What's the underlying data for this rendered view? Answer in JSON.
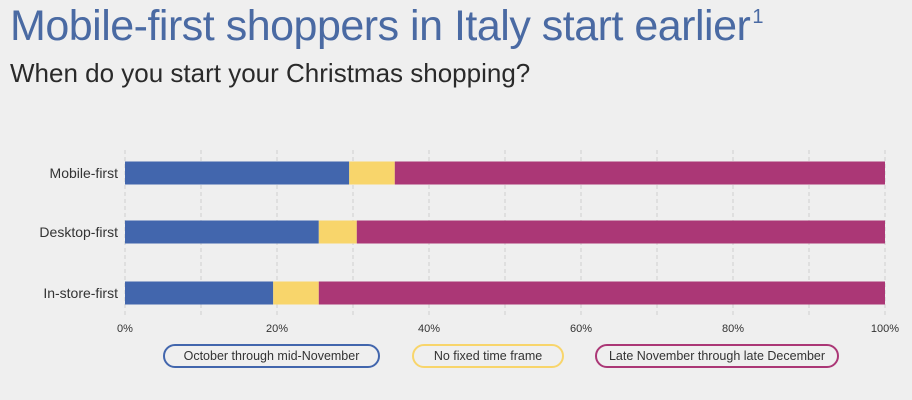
{
  "title": "Mobile-first shoppers in Italy start earlier",
  "title_footnote": "1",
  "subtitle": "When do you start your Christmas shopping?",
  "chart_data": {
    "type": "bar",
    "orientation": "horizontal",
    "stacked": true,
    "categories": [
      "Mobile-first",
      "Desktop-first",
      "In-store-first"
    ],
    "series": [
      {
        "name": "October through mid-November",
        "values": [
          29.5,
          25.5,
          19.5
        ],
        "color": "#4266ad"
      },
      {
        "name": "No fixed time frame",
        "values": [
          6,
          5,
          6
        ],
        "color": "#f8d56b"
      },
      {
        "name": "Late November through late December",
        "values": [
          64.5,
          69.5,
          74.5
        ],
        "color": "#ab3776"
      }
    ],
    "xlim": [
      0,
      100
    ],
    "x_ticks": [
      "0%",
      "20%",
      "40%",
      "60%",
      "80%",
      "100%"
    ],
    "grid": true,
    "legend_position": "bottom"
  }
}
